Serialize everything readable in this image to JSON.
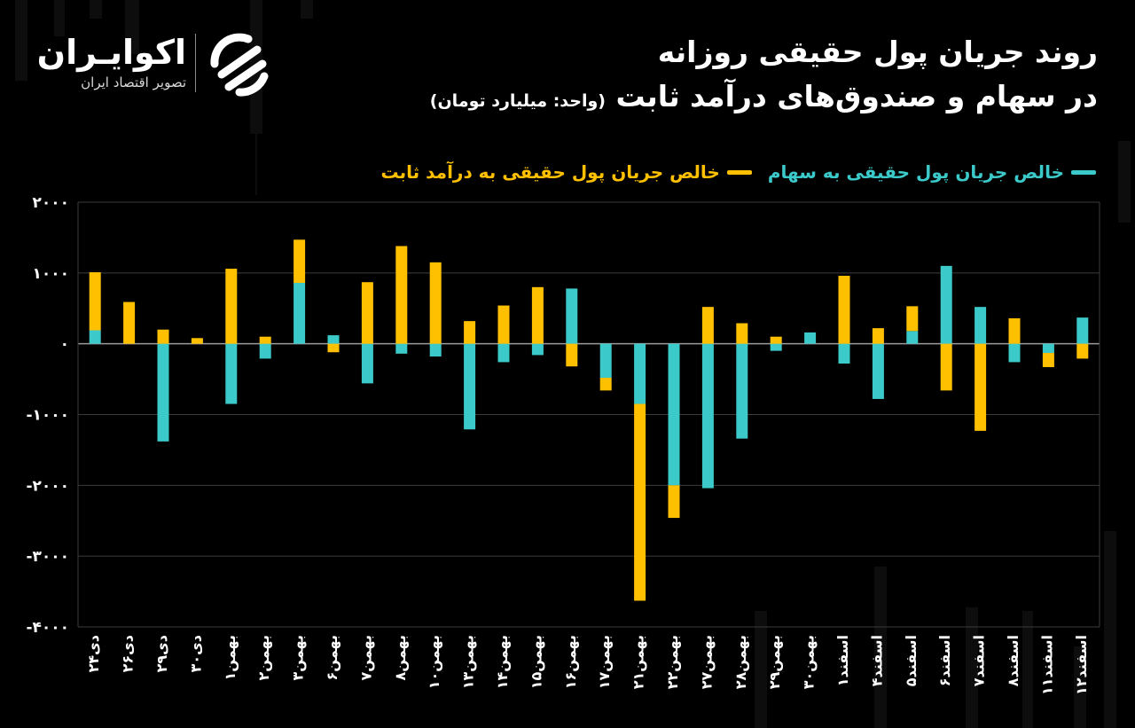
{
  "header": {
    "title_line1": "روند جریان پول حقیقی روزانه",
    "title_line2": "در سهام و صندوق‌های درآمد ثابت",
    "unit": "(واحد: میلیارد تومان)"
  },
  "logo": {
    "name": "اکوایـران",
    "subtitle": "تصویر اقتصاد ایران"
  },
  "colors": {
    "stocks": "#3cc9c9",
    "fixed_income": "#ffc000",
    "background": "#000000",
    "grid": "#3c3c3c",
    "text": "#ffffff"
  },
  "chart_data": {
    "type": "bar",
    "stacked": true,
    "categories": [
      "دی۲۴",
      "دی۲۶",
      "دی۲۹",
      "دی۳۰",
      "بهمن۱",
      "بهمن۲",
      "بهمن۳",
      "بهمن۶",
      "بهمن۷",
      "بهمن۸",
      "بهمن۱۰",
      "بهمن۱۳",
      "بهمن۱۴",
      "بهمن۱۵",
      "بهمن۱۶",
      "بهمن۱۷",
      "بهمن۲۱",
      "بهمن۲۲",
      "بهمن۲۷",
      "بهمن۲۸",
      "بهمن۲۹",
      "بهمن۳۰",
      "اسفند۱",
      "اسفند۴",
      "اسفند۵",
      "اسفند۶",
      "اسفند۷",
      "اسفند۸",
      "اسفند۱۱",
      "اسفند۱۲"
    ],
    "series": [
      {
        "name": "خالص جریان پول حقیقی به سهام",
        "color_key": "stocks",
        "values": [
          190,
          0,
          -1380,
          0,
          -850,
          -210,
          860,
          120,
          -560,
          -140,
          -180,
          -1210,
          -260,
          -160,
          780,
          -480,
          -850,
          -2000,
          -2040,
          -1340,
          -100,
          160,
          -280,
          -780,
          180,
          1100,
          520,
          -260,
          -130,
          370
        ]
      },
      {
        "name": "خالص جریان پول حقیقی به درآمد ثابت",
        "color_key": "fixed_income",
        "values": [
          820,
          590,
          200,
          80,
          1060,
          100,
          610,
          -120,
          870,
          1380,
          1150,
          320,
          540,
          800,
          -320,
          -180,
          -2780,
          -460,
          520,
          290,
          100,
          0,
          960,
          220,
          350,
          -660,
          -1230,
          360,
          -200,
          -210
        ]
      }
    ],
    "ylim": [
      -4000,
      2000
    ],
    "yticks": [
      2000,
      1000,
      0,
      -1000,
      -2000,
      -3000,
      -4000
    ],
    "ytick_labels": [
      "۲۰۰۰",
      "۱۰۰۰",
      "۰",
      "-۱۰۰۰",
      "-۲۰۰۰",
      "-۳۰۰۰",
      "-۴۰۰۰"
    ],
    "grid": true,
    "legend_position": "top-right"
  }
}
